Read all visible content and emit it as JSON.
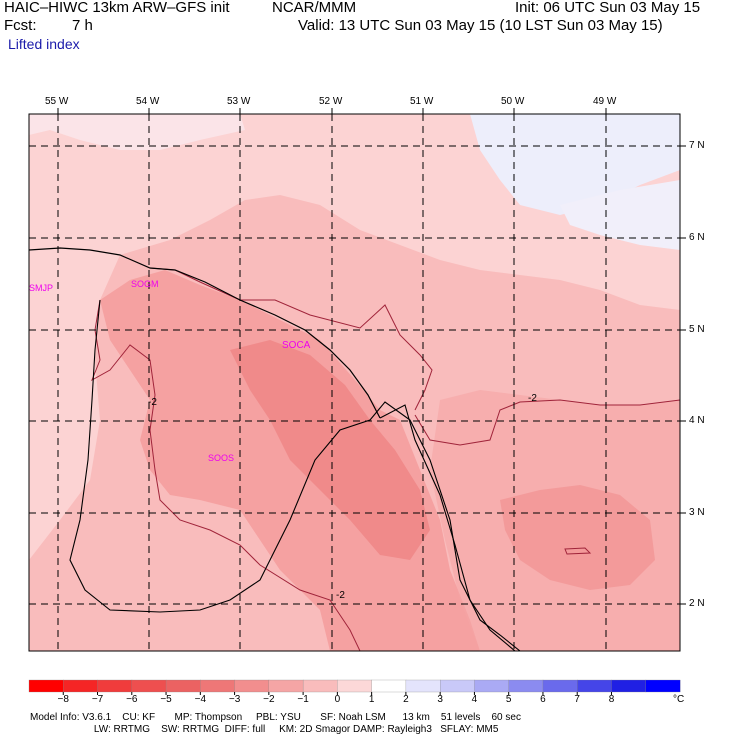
{
  "header": {
    "model_title": "HAIC–HIWC 13km ARW–GFS init",
    "org": "NCAR/MMM",
    "init": "Init: 06 UTC Sun 03 May 15",
    "fcst_label": "Fcst:",
    "fcst_value": "7 h",
    "valid": "Valid: 13 UTC Sun 03 May 15 (10 LST Sun 03 May 15)",
    "field": "Lifted index"
  },
  "map": {
    "lon_labels": [
      "55 W",
      "54 W",
      "53 W",
      "52 W",
      "51 W",
      "50 W",
      "49 W"
    ],
    "lat_labels": [
      "7 N",
      "6 N",
      "5 N",
      "4 N",
      "3 N",
      "2 N"
    ],
    "contour_labels": [
      "-2",
      "-2",
      "-2"
    ],
    "stations": [
      "SMJP",
      "SOGM",
      "SOCA",
      "SOOS"
    ],
    "colors": {
      "lightest_red": "#fcd3d3",
      "light_red": "#f9bcbc",
      "medium_red": "#f5a1a1",
      "darker_red": "#f08a8a",
      "pale_blue": "#e9ecfb",
      "station_magenta": "#ee00ee"
    }
  },
  "colorbar": {
    "ticks": [
      "−8",
      "−7",
      "−6",
      "−5",
      "−4",
      "−3",
      "−2",
      "−1",
      "0",
      "1",
      "2",
      "3",
      "4",
      "5",
      "6",
      "7",
      "8"
    ],
    "unit": "°C",
    "colors": [
      "#ff0000",
      "#f52525",
      "#f03c3c",
      "#ee4f4f",
      "#eb6262",
      "#ee7777",
      "#f28e8e",
      "#f5a5a5",
      "#f9bcbc",
      "#fcd8d8",
      "#ffffff",
      "#e4e4fc",
      "#c9c9f8",
      "#aaaaf4",
      "#8b8bf0",
      "#6a6aec",
      "#4545e8",
      "#2020e4",
      "#0000ff"
    ]
  },
  "footer": {
    "line1": "Model Info: V3.6.1    CU: KF       MP: Thompson     PBL: YSU       SF: Noah LSM      13 km    51 levels    60 sec",
    "line2": "                       LW: RRTMG    SW: RRTMG  DIFF: full     KM: 2D Smagor DAMP: Rayleigh3   SFLAY: MM5"
  }
}
